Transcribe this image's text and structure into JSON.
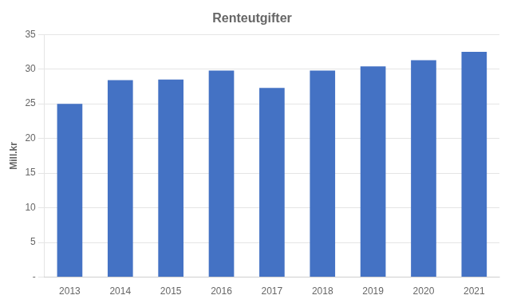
{
  "chart_data": {
    "type": "bar",
    "title": "Renteutgifter",
    "ylabel": "Mill.kr",
    "categories": [
      "2013",
      "2014",
      "2015",
      "2016",
      "2017",
      "2018",
      "2019",
      "2020",
      "2021"
    ],
    "values": [
      25.0,
      28.4,
      28.5,
      29.8,
      27.3,
      29.8,
      30.4,
      31.3,
      32.5
    ],
    "color": "#4472C4",
    "ylim": [
      0,
      35
    ],
    "yticks": [
      {
        "value": 0,
        "label": "-"
      },
      5,
      10,
      15,
      20,
      25,
      30,
      35
    ],
    "grid": true
  }
}
